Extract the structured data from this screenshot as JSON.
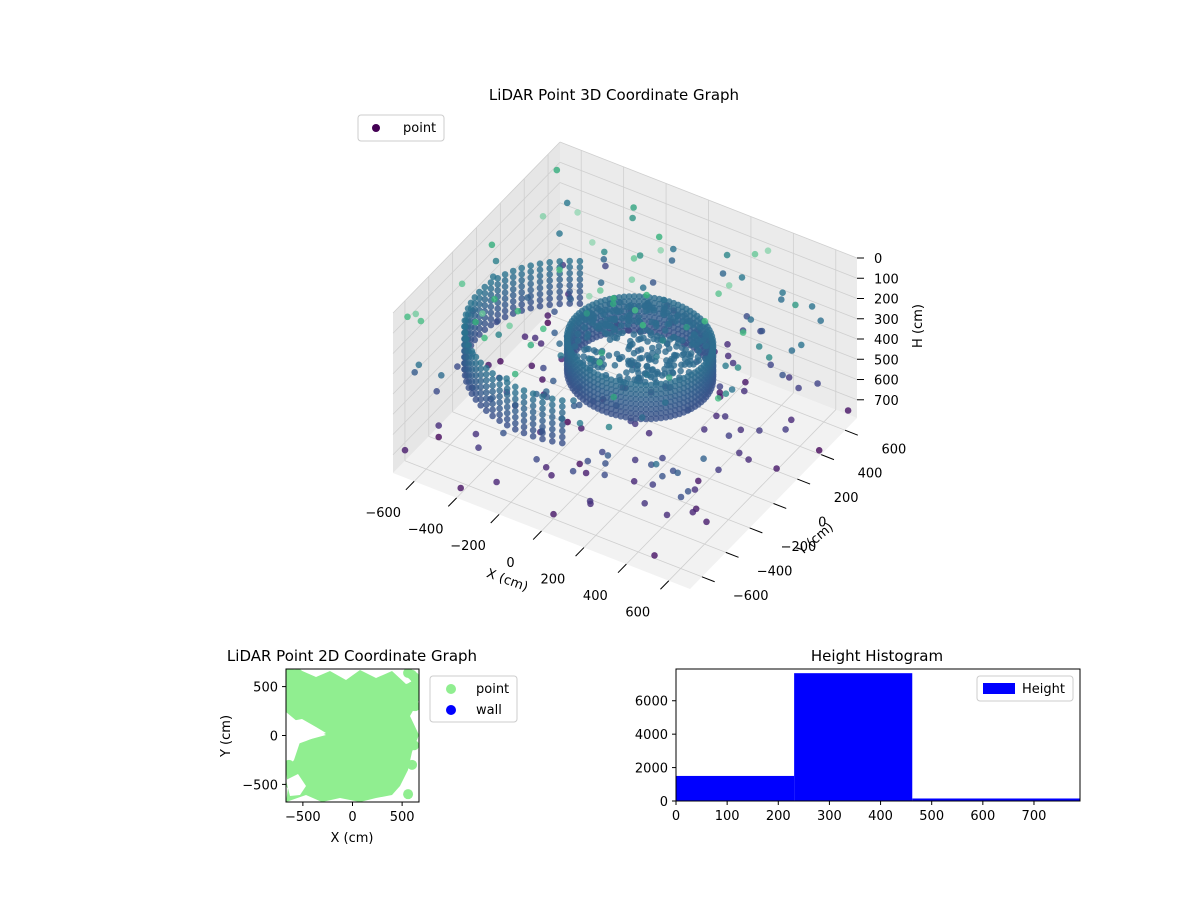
{
  "colors": {
    "point_2d": "#90ee90",
    "wall_2d": "#0000ff",
    "hist_bar": "#0000ff",
    "legend_3d_marker": "#440154"
  },
  "chart_data": [
    {
      "type": "scatter",
      "projection": "3d",
      "title": "LiDAR Point 3D Coordinate Graph",
      "xlabel": "X (cm)",
      "ylabel": "Y (cm)",
      "zlabel": "H (cm)",
      "xlim": [
        -700,
        700
      ],
      "ylim": [
        -700,
        700
      ],
      "zlim": [
        0,
        790
      ],
      "z_inverted": true,
      "xticks": [
        -600,
        -400,
        -200,
        0,
        200,
        400,
        600
      ],
      "yticks": [
        -600,
        -400,
        -200,
        0,
        200,
        400,
        600
      ],
      "zticks": [
        0,
        100,
        200,
        300,
        400,
        500,
        600,
        700
      ],
      "colormap": "viridis",
      "legend": {
        "entries": [
          "point"
        ],
        "placement": "top-left"
      },
      "grid": true,
      "structures": [
        {
          "kind": "ring",
          "center": [
            60,
            20
          ],
          "radius": 300,
          "h_range": [
            260,
            430
          ]
        },
        {
          "kind": "arc",
          "center": [
            -150,
            -100
          ],
          "radius": 480,
          "angle_range_deg": [
            120,
            290
          ],
          "h_range": [
            230,
            450
          ]
        },
        {
          "kind": "sparse",
          "count": 240,
          "h_range": [
            0,
            790
          ]
        }
      ]
    },
    {
      "type": "scatter",
      "title": "LiDAR Point 2D Coordinate Graph",
      "xlabel": "X (cm)",
      "ylabel": "Y (cm)",
      "xlim": [
        -670,
        670
      ],
      "ylim": [
        -680,
        680
      ],
      "xticks": [
        -500,
        0,
        500
      ],
      "yticks": [
        -500,
        0,
        500
      ],
      "legend": {
        "entries": [
          "point",
          "wall"
        ],
        "placement": "outside-right"
      },
      "series": [
        {
          "name": "point",
          "region": "dense fill of square"
        },
        {
          "name": "wall",
          "values": []
        }
      ]
    },
    {
      "type": "bar",
      "title": "Height Histogram",
      "bins": [
        {
          "start": 0,
          "end": 231,
          "count": 1500
        },
        {
          "start": 231,
          "end": 462,
          "count": 7650
        },
        {
          "start": 462,
          "end": 790,
          "count": 150
        }
      ],
      "xlim": [
        0,
        790
      ],
      "ylim": [
        0,
        7900
      ],
      "xticks": [
        0,
        100,
        200,
        300,
        400,
        500,
        600,
        700
      ],
      "yticks": [
        0,
        2000,
        4000,
        6000
      ],
      "legend": {
        "entries": [
          "Height"
        ],
        "placement": "top-right"
      }
    }
  ]
}
